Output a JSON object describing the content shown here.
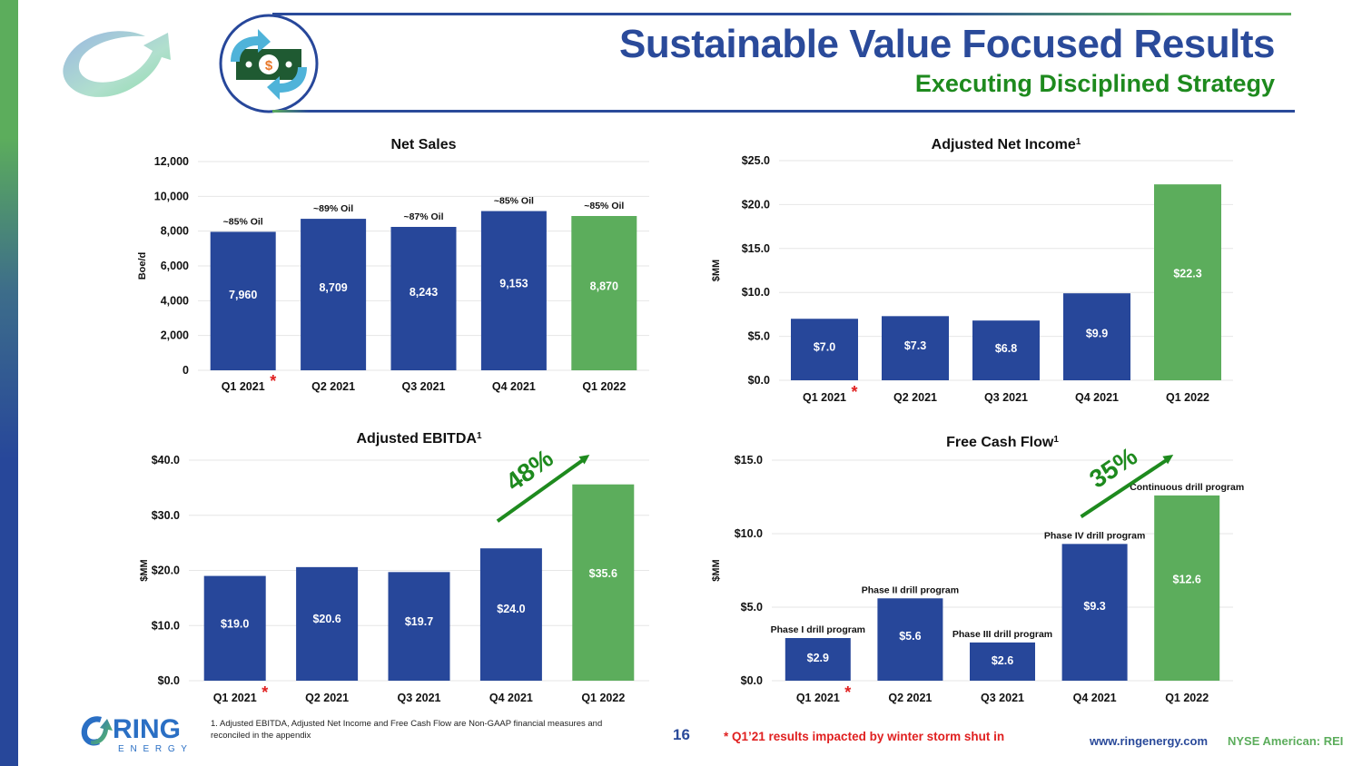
{
  "header": {
    "title": "Sustainable Value Focused Results",
    "subtitle": "Executing Disciplined Strategy",
    "icons": [
      "growth-swirl-icon",
      "money-cycle-icon"
    ]
  },
  "colors": {
    "primary_blue": "#27479a",
    "accent_green": "#5cad5c",
    "subtitle_green": "#1e8a1e",
    "highlight_red": "#e02020",
    "grid": "#e6e6e6"
  },
  "chart_data": [
    {
      "id": "net-sales",
      "type": "bar",
      "title": "Net Sales",
      "title_sup": "",
      "xlabel": "",
      "ylabel": "Boe/d",
      "categories": [
        "Q1 2021",
        "Q2 2021",
        "Q3 2021",
        "Q4 2021",
        "Q1 2022"
      ],
      "values": [
        7960,
        8709,
        8243,
        9153,
        8870
      ],
      "value_labels": [
        "7,960",
        "8,709",
        "8,243",
        "9,153",
        "8,870"
      ],
      "annotations": [
        "~85% Oil",
        "~89% Oil",
        "~87% Oil",
        "~85% Oil",
        "~85% Oil"
      ],
      "highlight_index": 4,
      "asterisk_index": 0,
      "ylim": [
        0,
        12000
      ],
      "yticks": [
        0,
        2000,
        4000,
        6000,
        8000,
        10000,
        12000
      ],
      "ytick_labels": [
        "0",
        "2,000",
        "4,000",
        "6,000",
        "8,000",
        "10,000",
        "12,000"
      ],
      "grid": true,
      "growth_label": ""
    },
    {
      "id": "adjusted-net-income",
      "type": "bar",
      "title": "Adjusted Net Income",
      "title_sup": "1",
      "xlabel": "",
      "ylabel": "$MM",
      "categories": [
        "Q1 2021",
        "Q2 2021",
        "Q3 2021",
        "Q4 2021",
        "Q1 2022"
      ],
      "values": [
        7.0,
        7.3,
        6.8,
        9.9,
        22.3
      ],
      "value_labels": [
        "$7.0",
        "$7.3",
        "$6.8",
        "$9.9",
        "$22.3"
      ],
      "annotations": [
        "",
        "",
        "",
        "",
        ""
      ],
      "highlight_index": 4,
      "asterisk_index": 0,
      "ylim": [
        0,
        25
      ],
      "yticks": [
        0,
        5,
        10,
        15,
        20,
        25
      ],
      "ytick_labels": [
        "$0.0",
        "$5.0",
        "$10.0",
        "$15.0",
        "$20.0",
        "$25.0"
      ],
      "grid": true,
      "growth_label": ""
    },
    {
      "id": "adjusted-ebitda",
      "type": "bar",
      "title": "Adjusted EBITDA",
      "title_sup": "1",
      "xlabel": "",
      "ylabel": "$MM",
      "categories": [
        "Q1 2021",
        "Q2 2021",
        "Q3 2021",
        "Q4 2021",
        "Q1 2022"
      ],
      "values": [
        19.0,
        20.6,
        19.7,
        24.0,
        35.6
      ],
      "value_labels": [
        "$19.0",
        "$20.6",
        "$19.7",
        "$24.0",
        "$35.6"
      ],
      "annotations": [
        "",
        "",
        "",
        "",
        ""
      ],
      "highlight_index": 4,
      "asterisk_index": 0,
      "ylim": [
        0,
        40
      ],
      "yticks": [
        0,
        10,
        20,
        30,
        40
      ],
      "ytick_labels": [
        "$0.0",
        "$10.0",
        "$20.0",
        "$30.0",
        "$40.0"
      ],
      "grid": true,
      "growth_label": "48%"
    },
    {
      "id": "free-cash-flow",
      "type": "bar",
      "title": "Free Cash Flow",
      "title_sup": "1",
      "xlabel": "",
      "ylabel": "$MM",
      "categories": [
        "Q1 2021",
        "Q2 2021",
        "Q3 2021",
        "Q4 2021",
        "Q1 2022"
      ],
      "values": [
        2.9,
        5.6,
        2.6,
        9.3,
        12.6
      ],
      "value_labels": [
        "$2.9",
        "$5.6",
        "$2.6",
        "$9.3",
        "$12.6"
      ],
      "annotations": [
        "Phase I drill program",
        "Phase II drill program",
        "Phase III drill program",
        "Phase IV drill program",
        "Continuous drill program"
      ],
      "highlight_index": 4,
      "asterisk_index": 0,
      "ylim": [
        0,
        15
      ],
      "yticks": [
        0,
        5,
        10,
        15
      ],
      "ytick_labels": [
        "$0.0",
        "$5.0",
        "$10.0",
        "$15.0"
      ],
      "grid": true,
      "growth_label": "35%"
    }
  ],
  "footer": {
    "logo_word": "RING",
    "logo_sub": "E N E R G Y",
    "footnote": "1.  Adjusted EBITDA, Adjusted Net Income and Free Cash Flow are Non-GAAP financial measures and reconciled in the appendix",
    "page_number": "16",
    "storm_note": "* Q1’21 results impacted by winter storm shut in",
    "website": "www.ringenergy.com",
    "ticker": "NYSE American: REI"
  }
}
